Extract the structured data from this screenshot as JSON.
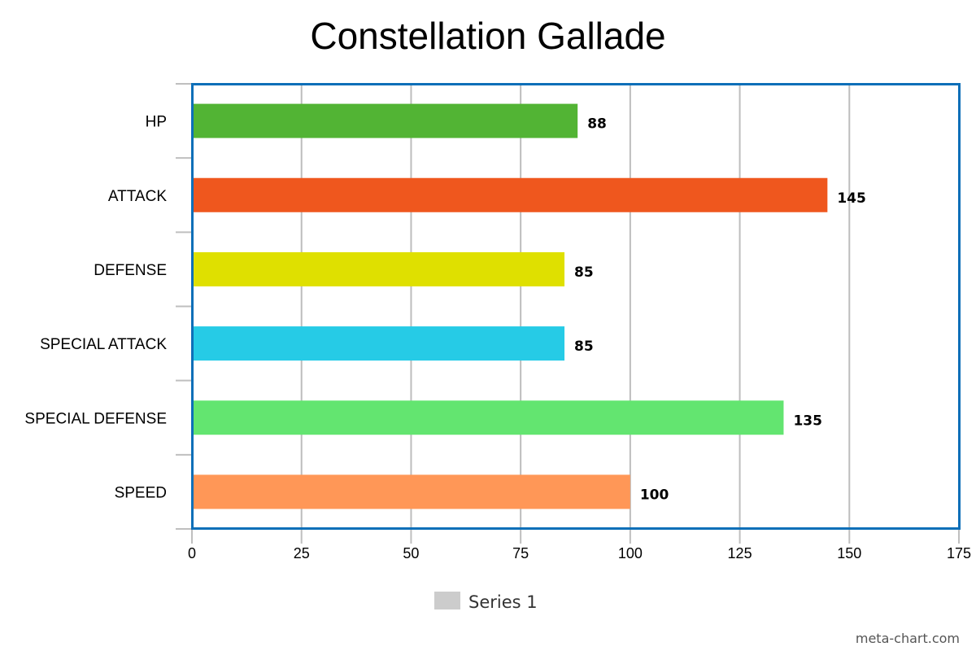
{
  "chart_data": {
    "type": "bar",
    "orientation": "horizontal",
    "title": "Constellation Gallade",
    "categories": [
      "HP",
      "ATTACK",
      "DEFENSE",
      "SPECIAL ATTACK",
      "SPECIAL DEFENSE",
      "SPEED"
    ],
    "series": [
      {
        "name": "Series 1",
        "values": [
          88,
          145,
          85,
          85,
          135,
          100
        ],
        "colors": [
          "#52b434",
          "#ef571e",
          "#dfe000",
          "#26cbe6",
          "#63e570",
          "#ff9757"
        ]
      }
    ],
    "data_labels": [
      "88",
      "145",
      "85",
      "85",
      "135",
      "100"
    ],
    "xlim": [
      0,
      175
    ],
    "xticks": [
      0,
      25,
      50,
      75,
      100,
      125,
      150,
      175
    ],
    "xtick_labels": [
      "0",
      "25",
      "50",
      "75",
      "100",
      "125",
      "150",
      "175"
    ],
    "grid": "vertical",
    "legend": {
      "position": "bottom",
      "label": "Series 1",
      "swatch_color": "#cccccc"
    },
    "frame_color": "#0d6fb8"
  },
  "credit": "meta-chart.com"
}
